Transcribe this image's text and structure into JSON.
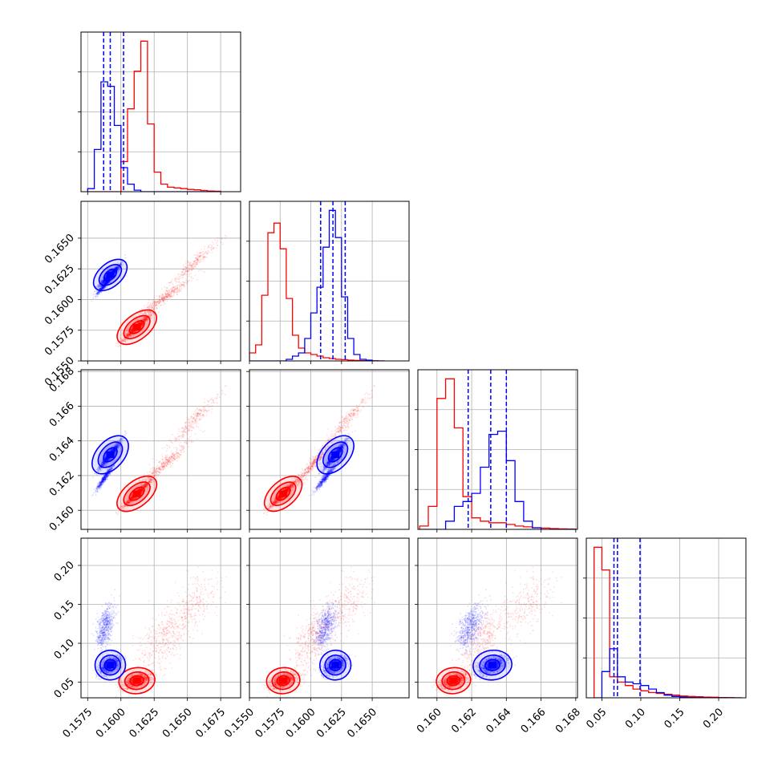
{
  "chart_data": {
    "type": "corner",
    "title": "",
    "parameters": 4,
    "colors": {
      "red": "#ff0000",
      "blue": "#0000ff"
    },
    "axes": [
      {
        "range": [
          0.157,
          0.169
        ],
        "ticks": [
          0.1575,
          0.16,
          0.1625,
          0.165,
          0.1675
        ],
        "labels": [
          "0.1575",
          "0.1600",
          "0.1625",
          "0.1650",
          "0.1675"
        ]
      },
      {
        "range": [
          0.155,
          0.168
        ],
        "ticks": [
          0.155,
          0.1575,
          0.16,
          0.1625,
          0.165
        ],
        "labels": [
          "0.1550",
          "0.1575",
          "0.1600",
          "0.1625",
          "0.1650"
        ]
      },
      {
        "range": [
          0.1589,
          0.1681
        ],
        "ticks": [
          0.16,
          0.162,
          0.164,
          0.166,
          0.168
        ],
        "labels": [
          "0.160",
          "0.162",
          "0.164",
          "0.166",
          "0.168"
        ]
      },
      {
        "range": [
          0.03,
          0.235
        ],
        "ticks": [
          0.05,
          0.1,
          0.15,
          0.2
        ],
        "labels": [
          "0.05",
          "0.10",
          "0.15",
          "0.20"
        ]
      }
    ],
    "histograms": [
      {
        "bins": [
          0.1575,
          0.158,
          0.1585,
          0.159,
          0.1595,
          0.16,
          0.1605,
          0.161,
          0.1615,
          0.162,
          0.1625,
          0.163,
          0.1635,
          0.164,
          0.1645,
          0.165,
          0.1655,
          0.166,
          0.1665,
          0.167,
          0.1675
        ],
        "series": [
          {
            "color": "red",
            "counts": [
              0,
              0,
              0,
              0,
              0,
              0.2,
              0.55,
              0.8,
              1.0,
              0.45,
              0.13,
              0.05,
              0.03,
              0.025,
              0.02,
              0.015,
              0.012,
              0.008,
              0.005,
              0.003
            ]
          },
          {
            "color": "blue",
            "counts": [
              0.02,
              0.28,
              0.73,
              0.7,
              0.44,
              0.16,
              0.05,
              0.01,
              0,
              0,
              0,
              0,
              0,
              0,
              0,
              0,
              0,
              0,
              0,
              0
            ]
          }
        ],
        "quantiles_blue": [
          0.1587,
          0.1592,
          0.1602
        ]
      },
      {
        "bins": [
          0.155,
          0.1555,
          0.156,
          0.1565,
          0.157,
          0.1575,
          0.158,
          0.1585,
          0.159,
          0.1595,
          0.16,
          0.1605,
          0.161,
          0.1615,
          0.162,
          0.1625,
          0.163,
          0.1635,
          0.164,
          0.1645,
          0.165,
          0.1655,
          0.166
        ],
        "series": [
          {
            "color": "red",
            "counts": [
              0.05,
              0.1,
              0.41,
              0.8,
              0.86,
              0.7,
              0.39,
              0.16,
              0.08,
              0.05,
              0.04,
              0.03,
              0.02,
              0.015,
              0.01,
              0.008,
              0.005,
              0.003,
              0.002,
              0.001,
              0.001,
              0
            ]
          },
          {
            "color": "blue",
            "counts": [
              0,
              0,
              0,
              0,
              0,
              0,
              0.01,
              0.03,
              0.05,
              0.14,
              0.3,
              0.46,
              0.71,
              0.94,
              0.77,
              0.4,
              0.14,
              0.04,
              0.01,
              0.005,
              0,
              0
            ]
          }
        ],
        "quantiles_blue": [
          0.1608,
          0.1618,
          0.1628
        ]
      },
      {
        "bins": [
          0.159,
          0.1595,
          0.16,
          0.1605,
          0.161,
          0.1615,
          0.162,
          0.1625,
          0.163,
          0.1635,
          0.164,
          0.1645,
          0.165,
          0.1655,
          0.166,
          0.1665,
          0.167,
          0.1675,
          0.168
        ],
        "series": [
          {
            "color": "red",
            "counts": [
              0.02,
              0.14,
              0.8,
              0.92,
              0.62,
              0.2,
              0.07,
              0.05,
              0.04,
              0.04,
              0.03,
              0.02,
              0.015,
              0.01,
              0.008,
              0.005,
              0.003,
              0.002
            ]
          },
          {
            "color": "blue",
            "counts": [
              0,
              0,
              0,
              0.05,
              0.14,
              0.17,
              0.22,
              0.38,
              0.58,
              0.6,
              0.42,
              0.17,
              0.05,
              0.01,
              0,
              0,
              0,
              0
            ]
          }
        ],
        "quantiles_blue": [
          0.1618,
          0.1631,
          0.164
        ]
      },
      {
        "bins": [
          0.04,
          0.05,
          0.06,
          0.07,
          0.08,
          0.09,
          0.1,
          0.11,
          0.12,
          0.13,
          0.14,
          0.15,
          0.16,
          0.17,
          0.18,
          0.19,
          0.2,
          0.21,
          0.22,
          0.23
        ],
        "series": [
          {
            "color": "red",
            "counts": [
              0.86,
              0.73,
              0.12,
              0.09,
              0.07,
              0.05,
              0.04,
              0.03,
              0.025,
              0.02,
              0.015,
              0.01,
              0.008,
              0.006,
              0.004,
              0.003,
              0.002,
              0.001,
              0
            ]
          },
          {
            "color": "blue",
            "counts": [
              0,
              0.15,
              0.28,
              0.12,
              0.09,
              0.08,
              0.07,
              0.05,
              0.03,
              0.015,
              0.008,
              0.004,
              0.002,
              0.001,
              0,
              0,
              0,
              0,
              0
            ]
          }
        ],
        "quantiles_blue": [
          0.0655,
          0.07,
          0.099
        ]
      }
    ],
    "blobs": {
      "red": [
        {
          "mean": [
            0.1612,
            0.15775,
            0.16095,
            0.052
          ],
          "sd": [
            0.00055,
            0.00055,
            0.0004,
            0.005
          ]
        },
        {
          "mean": [
            0.1632,
            0.1601,
            0.1626,
            0.105
          ],
          "sd": [
            0.001,
            0.0008,
            0.0007,
            0.022
          ]
        },
        {
          "mean": [
            0.1655,
            0.163,
            0.1652,
            0.15
          ],
          "sd": [
            0.001,
            0.001,
            0.0008,
            0.02
          ]
        }
      ],
      "blue": [
        {
          "mean": [
            0.1592,
            0.162,
            0.1632,
            0.072
          ],
          "sd": [
            0.00045,
            0.0005,
            0.00045,
            0.006
          ]
        },
        {
          "mean": [
            0.1588,
            0.1612,
            0.1619,
            0.12
          ],
          "sd": [
            0.00035,
            0.00045,
            0.0004,
            0.014
          ]
        }
      ]
    }
  }
}
